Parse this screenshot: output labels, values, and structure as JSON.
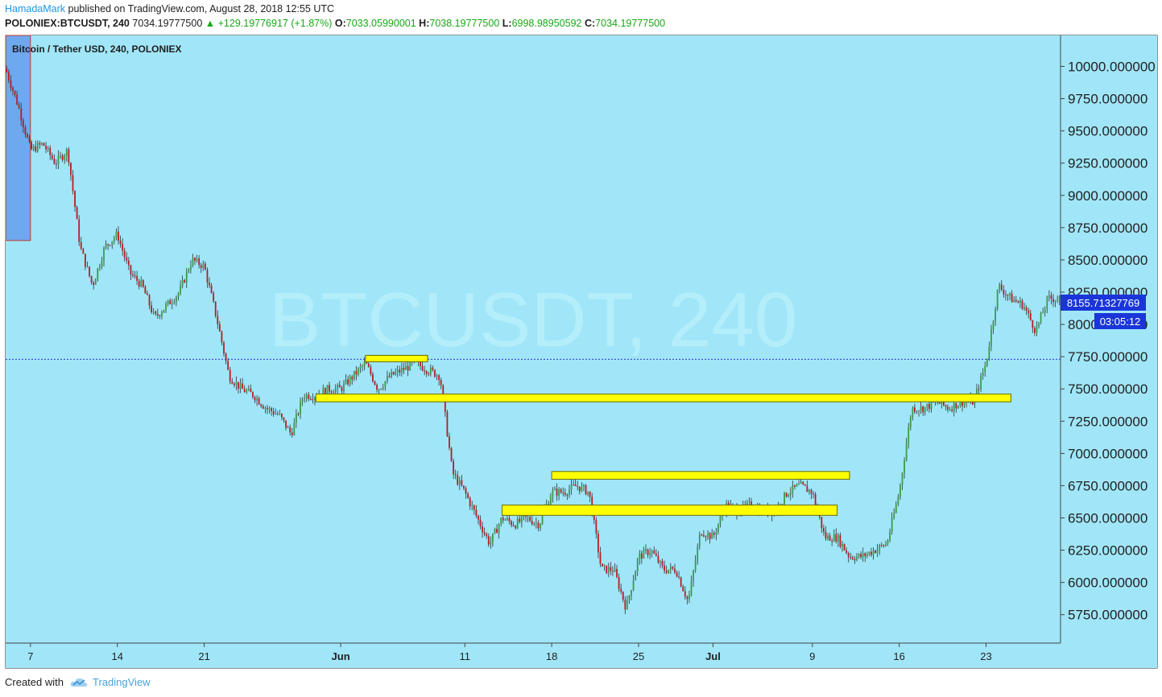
{
  "header": {
    "author": "HamadaMark",
    "published_text": " published on TradingView.com, August 28, 2018 12:55 UTC",
    "symbol": "POLONIEX:BTCUSDT, 240",
    "last": "7034.19777500",
    "change": "▲ +129.19776917 (+1.87%)",
    "open_label": "O:",
    "open": "7033.05990001",
    "high_label": "H:",
    "high": "7038.19777500",
    "low_label": "L:",
    "low": "6998.98950592",
    "close_label": "C:",
    "close": "7034.19777500"
  },
  "chart_title": "Bitcoin / Tether USD, 240, POLONIEX",
  "watermark": "BTCUSDT, 240",
  "price_badge": "8155.71327769",
  "countdown_badge": "03:05:12",
  "footer": {
    "created_with": "Created with",
    "brand": "TradingView"
  },
  "colors": {
    "plot_bg": "#a0e6f8",
    "up": "#3b9a48",
    "down": "#b81c24",
    "zone": "#ffff00",
    "badge": "#1a36d8",
    "shade": "#6ea8ee"
  },
  "chart_data": {
    "type": "candlestick",
    "title": "Bitcoin / Tether USD, 240, POLONIEX",
    "ylim": [
      5530,
      10240
    ],
    "y_ticks": [
      "10000.000000",
      "9750.000000",
      "9500.000000",
      "9250.000000",
      "9000.000000",
      "8750.000000",
      "8500.000000",
      "8250.000000",
      "8000.000000",
      "7750.000000",
      "7500.000000",
      "7250.000000",
      "7000.000000",
      "6750.000000",
      "6500.000000",
      "6250.000000",
      "6000.000000",
      "5750.000000"
    ],
    "x_ticks": [
      {
        "label": "7",
        "date": "2018-05-07"
      },
      {
        "label": "14",
        "date": "2018-05-14"
      },
      {
        "label": "21",
        "date": "2018-05-21"
      },
      {
        "label": "Jun",
        "date": "2018-06-01"
      },
      {
        "label": "11",
        "date": "2018-06-11"
      },
      {
        "label": "18",
        "date": "2018-06-18"
      },
      {
        "label": "25",
        "date": "2018-06-25"
      },
      {
        "label": "Jul",
        "date": "2018-07-01"
      },
      {
        "label": "9",
        "date": "2018-07-09"
      },
      {
        "label": "16",
        "date": "2018-07-16"
      },
      {
        "label": "23",
        "date": "2018-07-23"
      }
    ],
    "x_start": "2018-05-05",
    "x_end": "2018-07-29",
    "close_path": [
      [
        "2018-05-05",
        9980
      ],
      [
        "2018-05-06",
        9700
      ],
      [
        "2018-05-07",
        9350
      ],
      [
        "2018-05-08",
        9400
      ],
      [
        "2018-05-09",
        9250
      ],
      [
        "2018-05-10",
        9350
      ],
      [
        "2018-05-11",
        8600
      ],
      [
        "2018-05-12",
        8300
      ],
      [
        "2018-05-13",
        8600
      ],
      [
        "2018-05-14",
        8700
      ],
      [
        "2018-05-15",
        8400
      ],
      [
        "2018-05-16",
        8300
      ],
      [
        "2018-05-17",
        8050
      ],
      [
        "2018-05-18",
        8150
      ],
      [
        "2018-05-19",
        8250
      ],
      [
        "2018-05-20",
        8500
      ],
      [
        "2018-05-21",
        8450
      ],
      [
        "2018-05-22",
        8050
      ],
      [
        "2018-05-23",
        7600
      ],
      [
        "2018-05-24",
        7500
      ],
      [
        "2018-05-25",
        7450
      ],
      [
        "2018-05-26",
        7350
      ],
      [
        "2018-05-27",
        7300
      ],
      [
        "2018-05-28",
        7150
      ],
      [
        "2018-05-29",
        7450
      ],
      [
        "2018-05-30",
        7450
      ],
      [
        "2018-05-31",
        7500
      ],
      [
        "2018-06-01",
        7500
      ],
      [
        "2018-06-02",
        7600
      ],
      [
        "2018-06-03",
        7700
      ],
      [
        "2018-06-04",
        7500
      ],
      [
        "2018-06-05",
        7600
      ],
      [
        "2018-06-06",
        7650
      ],
      [
        "2018-06-07",
        7700
      ],
      [
        "2018-06-08",
        7650
      ],
      [
        "2018-06-09",
        7600
      ],
      [
        "2018-06-10",
        6850
      ],
      [
        "2018-06-11",
        6700
      ],
      [
        "2018-06-12",
        6500
      ],
      [
        "2018-06-13",
        6300
      ],
      [
        "2018-06-14",
        6500
      ],
      [
        "2018-06-15",
        6450
      ],
      [
        "2018-06-16",
        6500
      ],
      [
        "2018-06-17",
        6450
      ],
      [
        "2018-06-18",
        6700
      ],
      [
        "2018-06-19",
        6700
      ],
      [
        "2018-06-20",
        6750
      ],
      [
        "2018-06-21",
        6700
      ],
      [
        "2018-06-22",
        6100
      ],
      [
        "2018-06-23",
        6100
      ],
      [
        "2018-06-24",
        5800
      ],
      [
        "2018-06-25",
        6200
      ],
      [
        "2018-06-26",
        6250
      ],
      [
        "2018-06-27",
        6100
      ],
      [
        "2018-06-28",
        6100
      ],
      [
        "2018-06-29",
        5850
      ],
      [
        "2018-06-30",
        6400
      ],
      [
        "2018-07-01",
        6350
      ],
      [
        "2018-07-02",
        6600
      ],
      [
        "2018-07-03",
        6550
      ],
      [
        "2018-07-04",
        6600
      ],
      [
        "2018-07-05",
        6550
      ],
      [
        "2018-07-06",
        6550
      ],
      [
        "2018-07-07",
        6700
      ],
      [
        "2018-07-08",
        6750
      ],
      [
        "2018-07-09",
        6700
      ],
      [
        "2018-07-10",
        6350
      ],
      [
        "2018-07-11",
        6350
      ],
      [
        "2018-07-12",
        6200
      ],
      [
        "2018-07-13",
        6200
      ],
      [
        "2018-07-14",
        6250
      ],
      [
        "2018-07-15",
        6300
      ],
      [
        "2018-07-16",
        6700
      ],
      [
        "2018-07-17",
        7350
      ],
      [
        "2018-07-18",
        7350
      ],
      [
        "2018-07-19",
        7400
      ],
      [
        "2018-07-20",
        7350
      ],
      [
        "2018-07-21",
        7400
      ],
      [
        "2018-07-22",
        7400
      ],
      [
        "2018-07-23",
        7700
      ],
      [
        "2018-07-24",
        8300
      ],
      [
        "2018-07-25",
        8200
      ],
      [
        "2018-07-26",
        8150
      ],
      [
        "2018-07-27",
        7950
      ],
      [
        "2018-07-28",
        8200
      ],
      [
        "2018-07-29",
        8200
      ]
    ],
    "support_resistance_zones": [
      {
        "from": "2018-06-03",
        "to": "2018-06-08",
        "low": 7710,
        "high": 7760
      },
      {
        "from": "2018-05-30",
        "to": "2018-07-25",
        "low": 7400,
        "high": 7460
      },
      {
        "from": "2018-06-18",
        "to": "2018-07-12",
        "low": 6800,
        "high": 6860
      },
      {
        "from": "2018-06-14",
        "to": "2018-07-11",
        "low": 6520,
        "high": 6600
      }
    ],
    "horizontal_line": 7730,
    "shaded_region": {
      "from": "2018-05-05",
      "to": "2018-05-07",
      "low": 8650,
      "high": 10240
    }
  }
}
